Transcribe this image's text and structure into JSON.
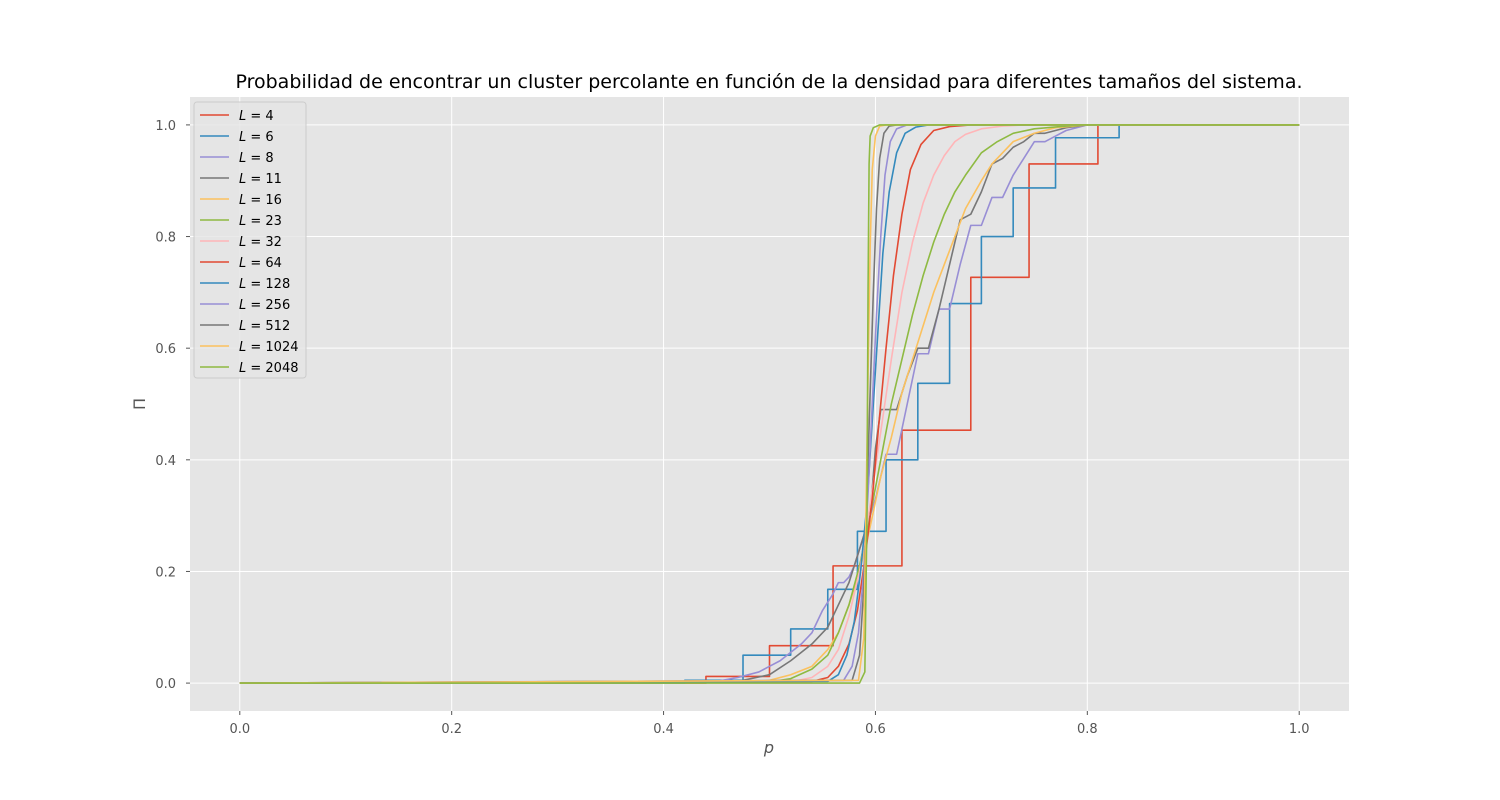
{
  "chart_data": {
    "type": "line",
    "title": "Probabilidad de encontrar un cluster percolante en función de la densidad para diferentes tamaños del sistema.",
    "xlabel": "p",
    "ylabel": "Π",
    "xlim": [
      -0.047,
      1.047
    ],
    "ylim": [
      -0.05,
      1.05
    ],
    "xticks": [
      0.0,
      0.2,
      0.4,
      0.6,
      0.8,
      1.0
    ],
    "xtick_labels": [
      "0.0",
      "0.2",
      "0.4",
      "0.6",
      "0.8",
      "1.0"
    ],
    "yticks": [
      0.0,
      0.2,
      0.4,
      0.6,
      0.8,
      1.0
    ],
    "ytick_labels": [
      "0.0",
      "0.2",
      "0.4",
      "0.6",
      "0.8",
      "1.0"
    ],
    "grid": true,
    "legend_position": "top-left",
    "background": "#e5e5e5",
    "series": [
      {
        "name": "L = 4",
        "L": "4",
        "color": "#E24A33",
        "x": [
          0,
          0.44,
          0.44,
          0.5,
          0.5,
          0.56,
          0.56,
          0.625,
          0.625,
          0.69,
          0.69,
          0.745,
          0.745,
          0.81,
          0.81,
          1.0
        ],
        "y": [
          0,
          0,
          0.012,
          0.012,
          0.067,
          0.067,
          0.21,
          0.21,
          0.453,
          0.453,
          0.727,
          0.727,
          0.93,
          0.93,
          1.0,
          1.0
        ]
      },
      {
        "name": "L = 6",
        "L": "6",
        "color": "#348ABD",
        "x": [
          0,
          0.42,
          0.42,
          0.475,
          0.475,
          0.52,
          0.52,
          0.555,
          0.555,
          0.583,
          0.583,
          0.595,
          0.595,
          0.61,
          0.61,
          0.64,
          0.64,
          0.67,
          0.67,
          0.7,
          0.7,
          0.73,
          0.73,
          0.77,
          0.77,
          0.83,
          0.83,
          1.0
        ],
        "y": [
          0,
          0,
          0.005,
          0.005,
          0.05,
          0.05,
          0.097,
          0.097,
          0.168,
          0.168,
          0.272,
          0.272,
          0.272,
          0.272,
          0.4,
          0.4,
          0.537,
          0.537,
          0.68,
          0.68,
          0.8,
          0.8,
          0.887,
          0.887,
          0.977,
          0.977,
          1.0,
          1.0
        ]
      },
      {
        "name": "L = 8",
        "L": "8",
        "color": "#988ED5",
        "x": [
          0,
          0.45,
          0.47,
          0.49,
          0.5,
          0.51,
          0.52,
          0.53,
          0.54,
          0.55,
          0.56,
          0.565,
          0.57,
          0.575,
          0.58,
          0.59,
          0.6,
          0.61,
          0.62,
          0.63,
          0.64,
          0.65,
          0.66,
          0.67,
          0.68,
          0.69,
          0.7,
          0.71,
          0.72,
          0.73,
          0.74,
          0.75,
          0.76,
          0.77,
          0.78,
          0.8,
          1.0
        ],
        "y": [
          0,
          0.003,
          0.01,
          0.02,
          0.03,
          0.04,
          0.055,
          0.07,
          0.09,
          0.13,
          0.16,
          0.18,
          0.18,
          0.19,
          0.21,
          0.27,
          0.33,
          0.41,
          0.41,
          0.5,
          0.59,
          0.59,
          0.67,
          0.67,
          0.75,
          0.82,
          0.82,
          0.87,
          0.87,
          0.91,
          0.94,
          0.97,
          0.97,
          0.98,
          0.99,
          1.0,
          1.0
        ]
      },
      {
        "name": "L = 11",
        "L": "11",
        "color": "#777777",
        "x": [
          0,
          0.47,
          0.5,
          0.52,
          0.54,
          0.555,
          0.565,
          0.575,
          0.585,
          0.595,
          0.6,
          0.605,
          0.62,
          0.63,
          0.64,
          0.65,
          0.66,
          0.67,
          0.68,
          0.69,
          0.7,
          0.71,
          0.72,
          0.73,
          0.74,
          0.75,
          0.76,
          0.77,
          0.78,
          0.8,
          1.0
        ],
        "y": [
          0,
          0.003,
          0.015,
          0.04,
          0.07,
          0.1,
          0.14,
          0.18,
          0.24,
          0.3,
          0.42,
          0.49,
          0.49,
          0.55,
          0.6,
          0.6,
          0.67,
          0.75,
          0.83,
          0.84,
          0.88,
          0.93,
          0.94,
          0.96,
          0.97,
          0.985,
          0.985,
          0.99,
          0.995,
          1.0,
          1.0
        ]
      },
      {
        "name": "L = 16",
        "L": "16",
        "color": "#FBC15E",
        "x": [
          0,
          0.48,
          0.5,
          0.52,
          0.54,
          0.555,
          0.565,
          0.575,
          0.585,
          0.595,
          0.605,
          0.615,
          0.625,
          0.635,
          0.645,
          0.655,
          0.665,
          0.675,
          0.685,
          0.7,
          0.71,
          0.72,
          0.73,
          0.75,
          0.77,
          0.8,
          1.0
        ],
        "y": [
          0,
          0.001,
          0.005,
          0.015,
          0.03,
          0.06,
          0.09,
          0.14,
          0.2,
          0.28,
          0.37,
          0.44,
          0.52,
          0.58,
          0.64,
          0.7,
          0.75,
          0.8,
          0.85,
          0.9,
          0.93,
          0.95,
          0.97,
          0.985,
          0.995,
          1.0,
          1.0
        ]
      },
      {
        "name": "L = 23",
        "L": "23",
        "color": "#8EBA42",
        "x": [
          0,
          0.5,
          0.52,
          0.54,
          0.555,
          0.565,
          0.575,
          0.585,
          0.595,
          0.605,
          0.615,
          0.625,
          0.635,
          0.645,
          0.655,
          0.665,
          0.675,
          0.685,
          0.7,
          0.715,
          0.73,
          0.75,
          0.78,
          0.8,
          1.0
        ],
        "y": [
          0,
          0.002,
          0.008,
          0.025,
          0.05,
          0.09,
          0.14,
          0.21,
          0.3,
          0.4,
          0.5,
          0.58,
          0.66,
          0.73,
          0.79,
          0.84,
          0.88,
          0.91,
          0.95,
          0.97,
          0.985,
          0.993,
          0.998,
          1.0,
          1.0
        ]
      },
      {
        "name": "L = 32",
        "L": "32",
        "color": "#FFB5B8",
        "x": [
          0,
          0.52,
          0.54,
          0.555,
          0.565,
          0.575,
          0.585,
          0.595,
          0.605,
          0.615,
          0.625,
          0.635,
          0.645,
          0.655,
          0.665,
          0.675,
          0.685,
          0.7,
          0.72,
          0.74,
          0.76,
          1.0
        ],
        "y": [
          0,
          0.002,
          0.01,
          0.03,
          0.06,
          0.12,
          0.2,
          0.32,
          0.45,
          0.58,
          0.7,
          0.79,
          0.86,
          0.91,
          0.945,
          0.97,
          0.983,
          0.993,
          0.998,
          1.0,
          1.0,
          1.0
        ]
      },
      {
        "name": "L = 64",
        "L": "64",
        "color": "#E24A33",
        "x": [
          0,
          0.54,
          0.555,
          0.565,
          0.575,
          0.583,
          0.59,
          0.597,
          0.603,
          0.61,
          0.617,
          0.625,
          0.633,
          0.643,
          0.655,
          0.67,
          0.69,
          0.72,
          1.0
        ],
        "y": [
          0,
          0.003,
          0.01,
          0.03,
          0.07,
          0.13,
          0.22,
          0.33,
          0.46,
          0.6,
          0.73,
          0.84,
          0.92,
          0.965,
          0.99,
          0.997,
          1.0,
          1.0,
          1.0
        ]
      },
      {
        "name": "L = 128",
        "L": "128",
        "color": "#348ABD",
        "x": [
          0,
          0.555,
          0.565,
          0.573,
          0.58,
          0.586,
          0.592,
          0.597,
          0.602,
          0.607,
          0.613,
          0.62,
          0.628,
          0.638,
          0.65,
          0.67,
          1.0
        ],
        "y": [
          0,
          0.003,
          0.015,
          0.05,
          0.11,
          0.2,
          0.32,
          0.47,
          0.62,
          0.77,
          0.88,
          0.95,
          0.985,
          0.996,
          1.0,
          1.0,
          1.0
        ]
      },
      {
        "name": "L = 256",
        "L": "256",
        "color": "#988ED5",
        "x": [
          0,
          0.57,
          0.578,
          0.584,
          0.589,
          0.593,
          0.597,
          0.601,
          0.605,
          0.609,
          0.614,
          0.62,
          0.63,
          0.645,
          1.0
        ],
        "y": [
          0,
          0.005,
          0.03,
          0.09,
          0.2,
          0.34,
          0.5,
          0.66,
          0.8,
          0.91,
          0.97,
          0.993,
          1.0,
          1.0,
          1.0
        ]
      },
      {
        "name": "L = 512",
        "L": "512",
        "color": "#777777",
        "x": [
          0,
          0.578,
          0.585,
          0.589,
          0.592,
          0.595,
          0.598,
          0.601,
          0.604,
          0.608,
          0.613,
          0.62,
          1.0
        ],
        "y": [
          0,
          0.005,
          0.05,
          0.17,
          0.34,
          0.52,
          0.7,
          0.85,
          0.94,
          0.985,
          0.998,
          1.0,
          1.0
        ]
      },
      {
        "name": "L = 1024",
        "L": "1024",
        "color": "#FBC15E",
        "x": [
          0,
          0.584,
          0.589,
          0.591,
          0.593,
          0.595,
          0.597,
          0.6,
          0.604,
          0.61,
          1.0
        ],
        "y": [
          0,
          0.005,
          0.08,
          0.3,
          0.55,
          0.78,
          0.92,
          0.98,
          0.998,
          1.0,
          1.0
        ]
      },
      {
        "name": "L = 2048",
        "L": "2048",
        "color": "#8EBA42",
        "x": [
          0,
          0.585,
          0.59,
          0.592,
          0.593,
          0.594,
          0.595,
          0.598,
          0.604,
          1.0
        ],
        "y": [
          0,
          0.0,
          0.02,
          0.3,
          0.7,
          0.93,
          0.98,
          0.995,
          1.0,
          1.0
        ]
      }
    ]
  }
}
